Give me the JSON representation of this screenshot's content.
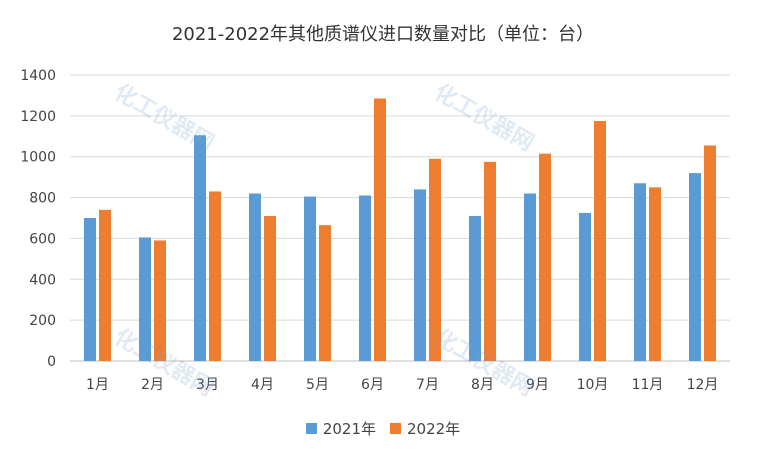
{
  "chart_data": {
    "type": "bar",
    "title": "2021-2022年其他质谱仪进口数量对比（单位：台）",
    "categories": [
      "1月",
      "2月",
      "3月",
      "4月",
      "5月",
      "6月",
      "7月",
      "8月",
      "9月",
      "10月",
      "11月",
      "12月"
    ],
    "series": [
      {
        "name": "2021年",
        "color": "#5B9BD5",
        "values": [
          700,
          605,
          1105,
          820,
          805,
          810,
          840,
          710,
          820,
          725,
          870,
          920
        ]
      },
      {
        "name": "2022年",
        "color": "#ED7D31",
        "values": [
          740,
          590,
          830,
          710,
          665,
          1285,
          990,
          975,
          1015,
          1175,
          850,
          1055
        ]
      }
    ],
    "ylim": [
      0,
      1400
    ],
    "yticks": [
      0,
      200,
      400,
      600,
      800,
      1000,
      1200,
      1400
    ],
    "grid": true,
    "legend": "bottom"
  },
  "watermark": {
    "text": "化工仪器网"
  }
}
